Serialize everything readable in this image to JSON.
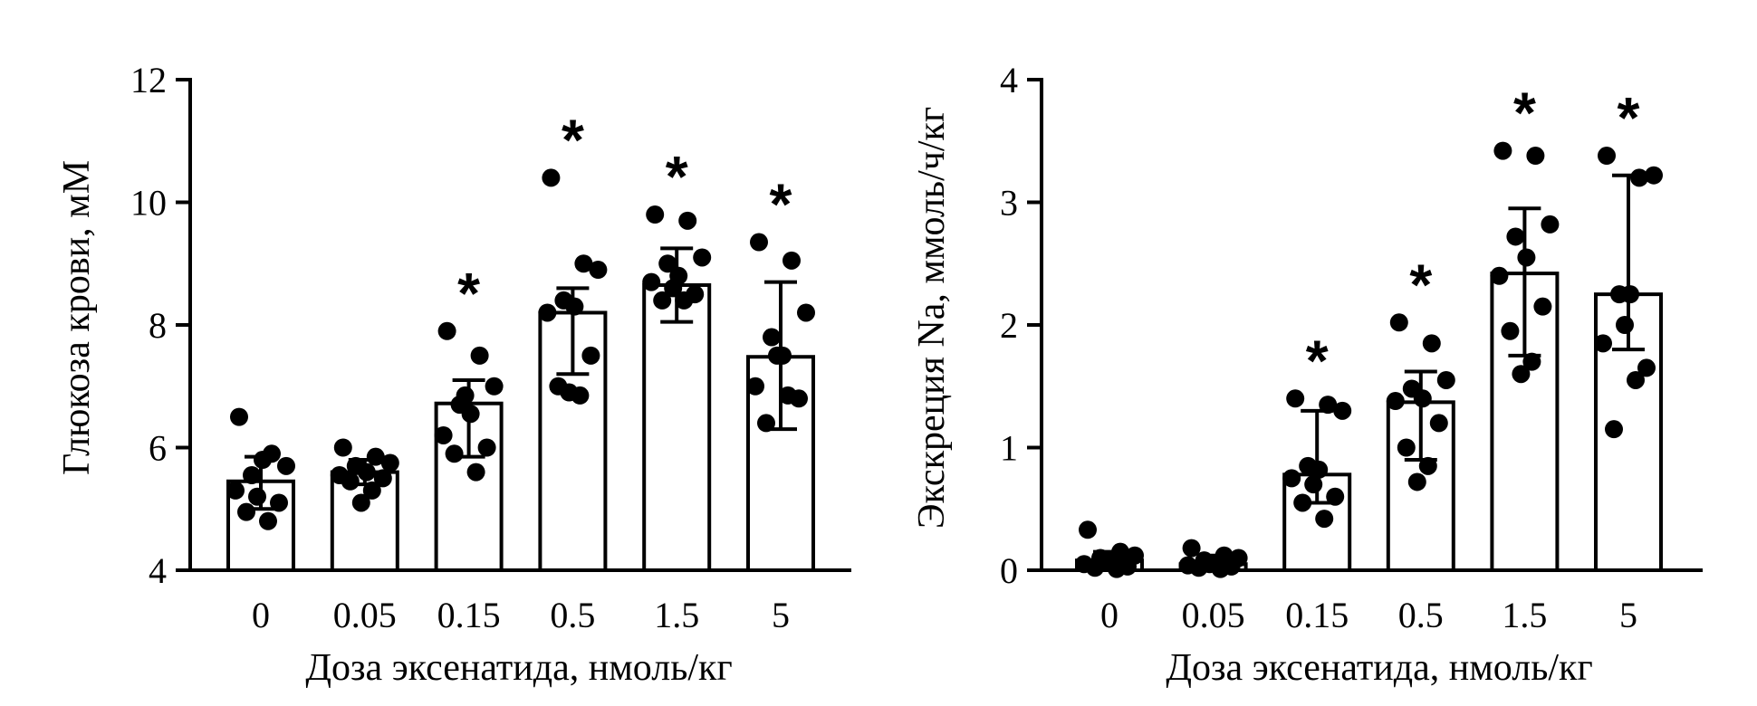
{
  "chart_data": [
    {
      "type": "bar",
      "xlabel": "Доза эксенатида, нмоль/кг",
      "ylabel": "Глюкоза крови, мМ",
      "ylim": [
        4,
        12
      ],
      "yticks": [
        4,
        6,
        8,
        10,
        12
      ],
      "ytick_labels": [
        "4",
        "6",
        "8",
        "10",
        "12"
      ],
      "categories": [
        "0",
        "0.05",
        "0.15",
        "0.5",
        "1.5",
        "5"
      ],
      "values": [
        5.45,
        5.6,
        6.72,
        8.2,
        8.65,
        7.48
      ],
      "error_low": [
        5.0,
        5.4,
        5.85,
        7.2,
        8.05,
        6.3
      ],
      "error_high": [
        5.85,
        5.8,
        7.1,
        8.6,
        9.25,
        8.7
      ],
      "significance": [
        "",
        "",
        "*",
        "*",
        "*",
        "*"
      ],
      "points": [
        [
          6.5,
          5.9,
          5.7,
          5.55,
          5.8,
          5.3,
          5.1,
          4.95,
          4.8,
          5.2
        ],
        [
          6.0,
          5.85,
          5.75,
          5.7,
          5.6,
          5.55,
          5.5,
          5.45,
          5.3,
          5.1
        ],
        [
          7.9,
          7.5,
          7.0,
          6.7,
          6.55,
          6.2,
          6.0,
          5.9,
          5.6,
          6.85
        ],
        [
          10.4,
          9.0,
          8.9,
          8.4,
          8.3,
          8.2,
          7.5,
          7.0,
          6.85,
          6.9
        ],
        [
          9.8,
          9.7,
          9.1,
          9.0,
          8.8,
          8.7,
          8.5,
          8.4,
          8.4,
          8.6
        ],
        [
          9.35,
          9.05,
          8.2,
          7.8,
          7.5,
          7.0,
          6.8,
          6.4,
          6.85,
          7.5
        ]
      ],
      "grid": false
    },
    {
      "type": "bar",
      "xlabel": "Доза эксенатида, нмоль/кг",
      "ylabel": "Экскреция Na, ммоль/ч/кг",
      "ylim": [
        0,
        4
      ],
      "yticks": [
        0,
        1,
        2,
        3,
        4
      ],
      "ytick_labels": [
        "0",
        "1",
        "2",
        "3",
        "4"
      ],
      "categories": [
        "0",
        "0.05",
        "0.15",
        "0.5",
        "1.5",
        "5"
      ],
      "values": [
        0.08,
        0.05,
        0.78,
        1.37,
        2.42,
        2.25
      ],
      "error_low": [
        0.01,
        0.01,
        0.55,
        0.9,
        1.75,
        1.8
      ],
      "error_high": [
        0.15,
        0.12,
        1.3,
        1.62,
        2.95,
        3.22
      ],
      "significance": [
        "",
        "",
        "*",
        "*",
        "*",
        "*"
      ],
      "points": [
        [
          0.33,
          0.15,
          0.12,
          0.1,
          0.08,
          0.05,
          0.03,
          0.02,
          0.01,
          0.06
        ],
        [
          0.18,
          0.12,
          0.1,
          0.08,
          0.06,
          0.04,
          0.03,
          0.02,
          0.01,
          0.05
        ],
        [
          1.4,
          1.35,
          1.3,
          0.85,
          0.82,
          0.75,
          0.6,
          0.55,
          0.42,
          0.7
        ],
        [
          2.02,
          1.85,
          1.55,
          1.48,
          1.4,
          1.38,
          1.2,
          1.0,
          0.85,
          0.72
        ],
        [
          3.42,
          3.38,
          2.82,
          2.72,
          2.55,
          2.4,
          2.15,
          1.95,
          1.7,
          1.6
        ],
        [
          3.38,
          3.2,
          3.22,
          2.25,
          2.25,
          1.85,
          1.65,
          1.15,
          1.55,
          2.0
        ]
      ],
      "grid": false
    }
  ]
}
